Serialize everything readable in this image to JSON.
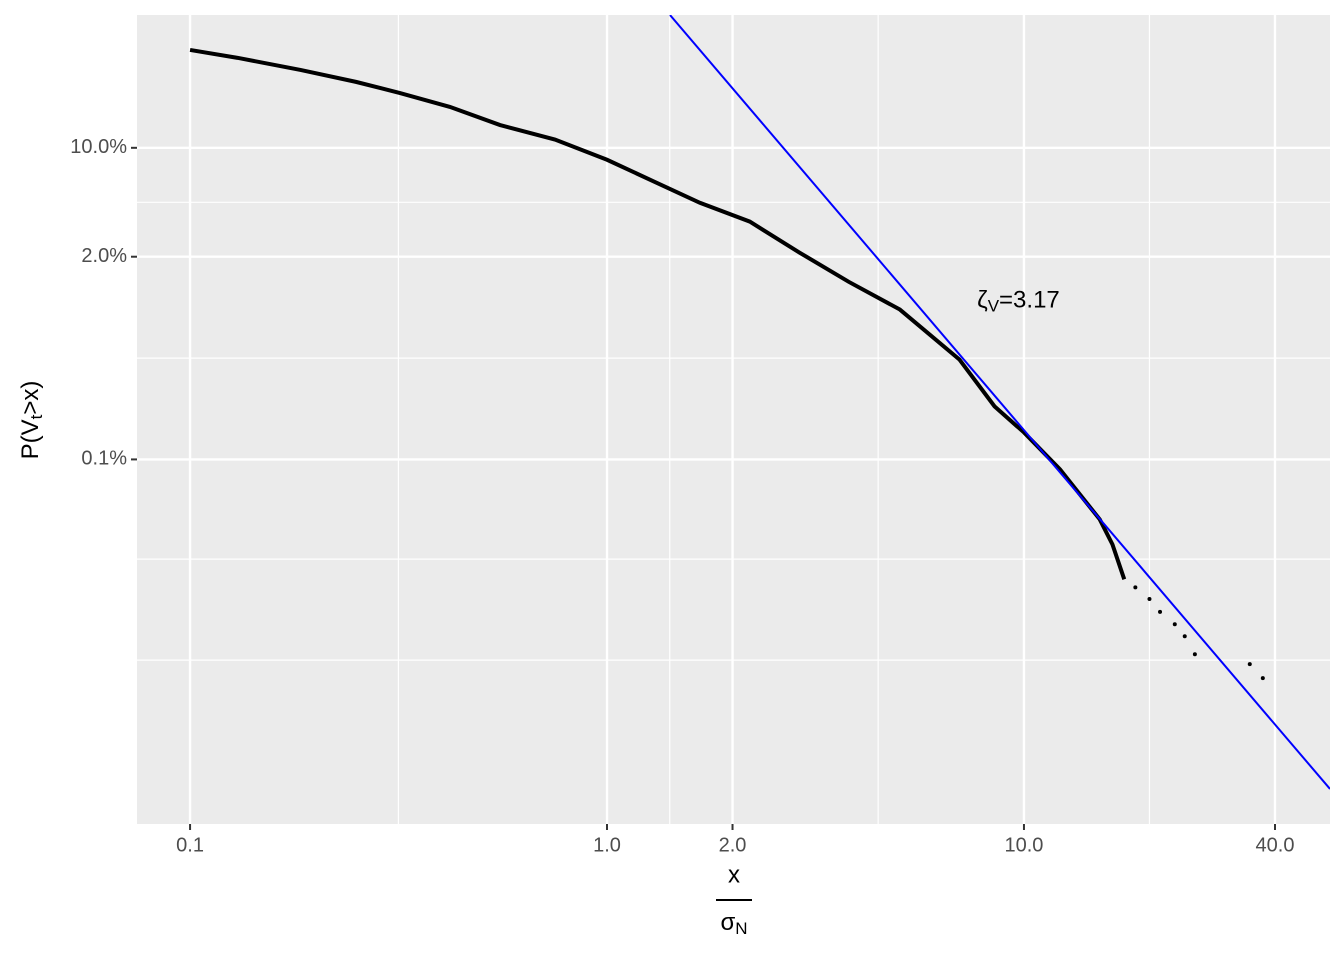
{
  "chart_data": {
    "type": "scatter",
    "xlog": true,
    "ylog": true,
    "grid": true,
    "xlim": [
      0.0746,
      54.2
    ],
    "ylim": [
      0.000457,
      71.2
    ],
    "xticks": [
      0.1,
      {
        "value": 1,
        "label": "1.0"
      },
      {
        "value": 2,
        "label": "2.0"
      },
      {
        "value": 10,
        "label": "10.0"
      },
      {
        "value": 40,
        "label": "40.0"
      }
    ],
    "yticks": [
      {
        "value": 0.1,
        "label": "0.1%"
      },
      {
        "value": 2,
        "label": "2.0%"
      },
      {
        "value": 10,
        "label": "10.0%"
      }
    ],
    "x_minor_grid": [
      0.316,
      1.414,
      4.47,
      20
    ],
    "y_minor_grid": [
      0.00515,
      0.0229,
      0.447,
      4.47
    ],
    "x_label": {
      "numerator": "x",
      "denominator": [
        "σ",
        "N"
      ]
    },
    "y_label": [
      "P(V",
      "t",
      ">x)"
    ],
    "series": [
      {
        "mode": "line",
        "color": "#000000",
        "x": [
          0.1,
          0.13,
          0.184,
          0.25,
          0.318,
          0.42,
          0.554,
          0.75,
          1.0,
          1.3,
          1.67,
          2.2,
          2.9,
          3.8,
          5.04,
          7.0,
          8.5,
          10,
          12.2,
          15.2,
          16.3,
          17.4
        ],
        "values": [
          42.5,
          37.8,
          31.6,
          26.5,
          22.5,
          18.3,
          14.0,
          11.3,
          8.38,
          6.05,
          4.44,
          3.36,
          2.12,
          1.38,
          0.916,
          0.438,
          0.219,
          0.149,
          0.0863,
          0.0412,
          0.0285,
          0.017
        ]
      },
      {
        "mode": "points",
        "color": "#000000",
        "x": [
          18.5,
          20,
          21.2,
          23,
          24.3,
          25.7,
          34.8,
          37.4
        ],
        "values": [
          0.0151,
          0.0127,
          0.0105,
          0.00875,
          0.00733,
          0.00562,
          0.00485,
          0.00395
        ]
      },
      {
        "mode": "line",
        "color": "#0000ff",
        "x": [
          1.416,
          54.2
        ],
        "values": [
          71.2,
          0.000767
        ]
      }
    ],
    "annotation": {
      "x": 9.7,
      "y": 1.03,
      "text": [
        "ζ",
        "V",
        "=3.17"
      ]
    }
  }
}
